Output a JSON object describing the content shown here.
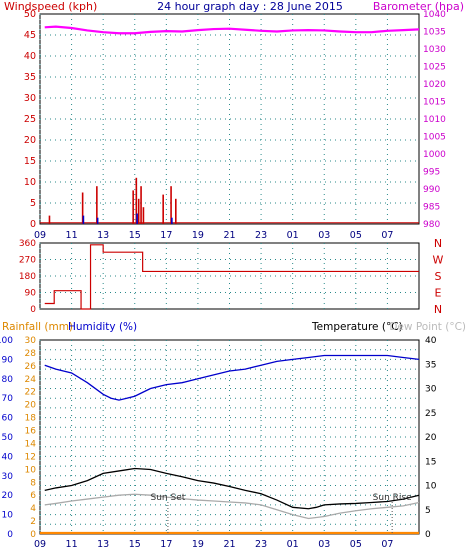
{
  "header": {
    "title": "24 hour graph day : 28 June 2015",
    "left_label": "Windspeed (kph)",
    "right_label": "Barometer (hpa)"
  },
  "bottom_header": {
    "rainfall_label": "Rainfall (mm)",
    "humidity_label": "Humidity (%)",
    "temperature_label": "Temperature (°C)",
    "dewpoint_label": "Dew Point (°C)"
  },
  "colors": {
    "windspeed": "#cc0000",
    "gust": "#0000cc",
    "barometer": "#ff00ff",
    "direction": "#cc0000",
    "humidity": "#0000cc",
    "temperature": "#000000",
    "dewpoint": "#aaaaaa",
    "rainfall": "#ff8800",
    "grid": "#2a8a8a",
    "axis_right": "#cc00cc"
  },
  "chart_data": [
    {
      "type": "line",
      "name": "wind-barometer",
      "x_ticks": [
        "11",
        "13",
        "15",
        "17",
        "19",
        "21",
        "23",
        "01",
        "03",
        "05",
        "07",
        "09"
      ],
      "x_range": [
        9,
        33
      ],
      "y_left": {
        "label": "Windspeed (kph)",
        "range": [
          0,
          50
        ],
        "ticks": [
          0,
          5,
          10,
          15,
          20,
          25,
          30,
          35,
          40,
          45,
          50
        ]
      },
      "y_right": {
        "label": "Barometer (hpa)",
        "range": [
          980,
          1040
        ],
        "ticks": [
          980,
          985,
          990,
          995,
          1000,
          1005,
          1010,
          1015,
          1020,
          1025,
          1030,
          1035,
          1040
        ]
      },
      "windspeed_spikes": [
        {
          "x": 9.6,
          "v": 2
        },
        {
          "x": 11.7,
          "v": 7.5
        },
        {
          "x": 12.6,
          "v": 9
        },
        {
          "x": 14.9,
          "v": 8
        },
        {
          "x": 15.1,
          "v": 11
        },
        {
          "x": 15.25,
          "v": 6
        },
        {
          "x": 15.4,
          "v": 9
        },
        {
          "x": 15.55,
          "v": 4
        },
        {
          "x": 16.8,
          "v": 7
        },
        {
          "x": 17.3,
          "v": 9
        },
        {
          "x": 17.6,
          "v": 6
        }
      ],
      "gust_spikes": [
        {
          "x": 11.75,
          "v": 2
        },
        {
          "x": 12.65,
          "v": 1.5
        },
        {
          "x": 15.15,
          "v": 2.5
        },
        {
          "x": 17.35,
          "v": 1.5
        }
      ],
      "barometer": {
        "x": [
          9.3,
          10,
          11,
          12,
          13,
          14,
          15,
          16,
          17,
          18,
          19,
          20,
          21,
          22,
          23,
          24,
          25,
          26,
          27,
          28,
          29,
          30,
          31,
          32,
          33
        ],
        "v": [
          1036.2,
          1036.4,
          1036.0,
          1035.3,
          1034.8,
          1034.5,
          1034.5,
          1034.9,
          1035.1,
          1035.0,
          1035.4,
          1035.7,
          1035.8,
          1035.5,
          1035.2,
          1035.0,
          1035.3,
          1035.4,
          1035.3,
          1035.0,
          1034.8,
          1034.8,
          1035.2,
          1035.4,
          1035.6
        ]
      }
    },
    {
      "type": "line",
      "name": "wind-direction",
      "y_ticks": [
        0,
        90,
        180,
        270,
        360
      ],
      "y_range": [
        0,
        360
      ],
      "compass": [
        "N",
        "W",
        "S",
        "E",
        "N"
      ],
      "x": [
        9.3,
        9.9,
        9.9,
        11.6,
        11.6,
        12.2,
        12.2,
        13.0,
        13.0,
        15.5,
        15.5,
        33
      ],
      "v": [
        30,
        30,
        100,
        100,
        0,
        0,
        350,
        350,
        310,
        310,
        205,
        205
      ]
    },
    {
      "type": "line",
      "name": "rain-humidity-temperature",
      "x_range": [
        9,
        33
      ],
      "y_humidity": {
        "label": "Humidity (%)",
        "range": [
          0,
          100
        ],
        "ticks": [
          0,
          10,
          20,
          30,
          40,
          50,
          60,
          70,
          80,
          90,
          100
        ]
      },
      "y_rainfall": {
        "label": "Rainfall (mm)",
        "range": [
          0,
          30
        ],
        "ticks": [
          0,
          2,
          4,
          6,
          8,
          10,
          12,
          14,
          16,
          18,
          20,
          22,
          24,
          26,
          28,
          30
        ]
      },
      "y_temperature": {
        "label": "Temperature (°C)",
        "range": [
          0,
          40
        ],
        "ticks": [
          0,
          5,
          10,
          15,
          20,
          25,
          30,
          35,
          40
        ]
      },
      "humidity": {
        "x": [
          9.3,
          10,
          11,
          12,
          13,
          13.5,
          14,
          14.5,
          15,
          15.5,
          16,
          17,
          18,
          19,
          20,
          21,
          22,
          23,
          24,
          25,
          26,
          27,
          28,
          29,
          30,
          31,
          32,
          33
        ],
        "v": [
          87,
          85,
          83,
          78,
          72,
          70,
          69,
          70,
          71,
          73,
          75,
          77,
          78,
          80,
          82,
          84,
          85,
          87,
          89,
          90,
          91,
          92,
          92,
          92,
          92,
          92,
          91,
          90
        ]
      },
      "temperature": {
        "x": [
          9.3,
          10,
          11,
          12,
          13,
          14,
          15,
          16,
          17,
          18,
          19,
          20,
          21,
          22,
          23,
          24,
          25,
          26,
          26.5,
          27,
          28,
          29,
          30,
          31,
          32,
          33
        ],
        "v": [
          9,
          9.5,
          10,
          11,
          12.5,
          13,
          13.5,
          13.3,
          12.5,
          11.8,
          11,
          10.5,
          9.8,
          9,
          8.3,
          7,
          5.5,
          5.2,
          5.5,
          6,
          6.2,
          6.3,
          6.5,
          6.7,
          7.2,
          8
        ]
      },
      "dewpoint": {
        "x": [
          9.3,
          10,
          11,
          12,
          13,
          14,
          15,
          16,
          17,
          18,
          19,
          20,
          21,
          22,
          23,
          24,
          25,
          26,
          27,
          28,
          29,
          30,
          31,
          32,
          33
        ],
        "v": [
          6,
          6.3,
          6.8,
          7.2,
          7.6,
          8,
          8.2,
          8,
          7.6,
          7.3,
          7,
          6.8,
          6.6,
          6.4,
          6,
          5,
          4,
          3.2,
          3.6,
          4.3,
          4.8,
          5.2,
          5.5,
          5.8,
          6.5
        ]
      },
      "rainfall_total": 0,
      "annotations": [
        {
          "text": "Sun Set",
          "x": 17.1
        },
        {
          "text": "Sun Rise",
          "x": 31.3
        }
      ]
    }
  ]
}
